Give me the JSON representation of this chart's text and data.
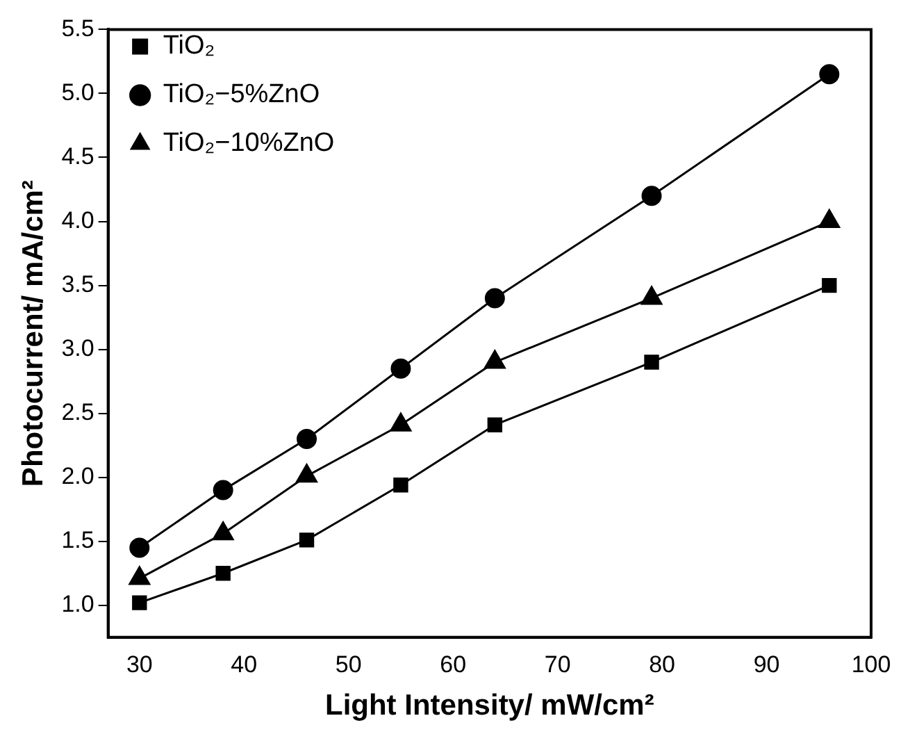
{
  "chart_data": {
    "type": "line",
    "xlabel": "Light Intensity/ mW/cm²",
    "ylabel": "Photocurrent/ mA/cm²",
    "x": [
      30,
      38,
      46,
      55,
      64,
      79,
      96
    ],
    "series": [
      {
        "name": "TiO₂",
        "color": "#000000",
        "marker": "square",
        "values": [
          1.02,
          1.25,
          1.51,
          1.94,
          2.41,
          2.9,
          3.5
        ]
      },
      {
        "name": "TiO₂−5%ZnO",
        "color": "#000000",
        "marker": "circle",
        "values": [
          1.45,
          1.9,
          2.3,
          2.85,
          3.4,
          4.2,
          5.15
        ]
      },
      {
        "name": "TiO₂−10%ZnO",
        "color": "#000000",
        "marker": "triangle",
        "values": [
          1.21,
          1.56,
          2.01,
          2.41,
          2.9,
          3.4,
          4.0
        ]
      }
    ],
    "xlim": [
      27,
      100
    ],
    "xticks": [
      30,
      40,
      50,
      60,
      70,
      80,
      90,
      100
    ],
    "ylim": [
      0.75,
      5.5
    ],
    "yticks": [
      {
        "value": 1,
        "label": "1.0"
      },
      1.5,
      {
        "value": 2,
        "label": "2.0"
      },
      2.5,
      {
        "value": 3,
        "label": "3.0"
      },
      3.5,
      {
        "value": 4,
        "label": "4.0"
      },
      4.5,
      {
        "value": 5,
        "label": "5.0"
      },
      5.5
    ],
    "grid": false,
    "legend": "top left",
    "line_style": "solid"
  }
}
